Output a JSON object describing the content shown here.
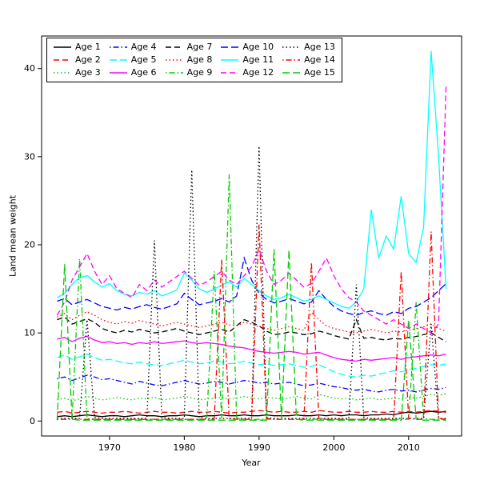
{
  "figure": {
    "background": "#ffffff",
    "box_color": "#000000"
  },
  "chart_data": {
    "type": "line",
    "title": "",
    "xlabel": "Year",
    "ylabel": "Land mean weight",
    "xlim": [
      1963,
      2015
    ],
    "ylim": [
      0,
      42
    ],
    "x_ticks": [
      1970,
      1980,
      1990,
      2000,
      2010
    ],
    "y_ticks": [
      0,
      10,
      20,
      30,
      40
    ],
    "grid": false,
    "legend_position": "top-left",
    "legend_ncol": 5,
    "x": [
      1963,
      1964,
      1965,
      1966,
      1967,
      1968,
      1969,
      1970,
      1971,
      1972,
      1973,
      1974,
      1975,
      1976,
      1977,
      1978,
      1979,
      1980,
      1981,
      1982,
      1983,
      1984,
      1985,
      1986,
      1987,
      1988,
      1989,
      1990,
      1991,
      1992,
      1993,
      1994,
      1995,
      1996,
      1997,
      1998,
      1999,
      2000,
      2001,
      2002,
      2003,
      2004,
      2005,
      2006,
      2007,
      2008,
      2009,
      2010,
      2011,
      2012,
      2013,
      2014,
      2015
    ],
    "series": [
      {
        "name": "Age 1",
        "color": "#000000",
        "linestyle": "solid",
        "values": [
          0.5,
          0.6,
          0.5,
          0.6,
          0.7,
          0.6,
          0.5,
          0.6,
          0.6,
          0.5,
          0.6,
          0.7,
          0.6,
          0.6,
          0.5,
          0.6,
          0.6,
          0.7,
          0.6,
          0.5,
          0.6,
          0.6,
          0.7,
          0.6,
          0.6,
          0.7,
          0.6,
          0.6,
          0.7,
          0.6,
          0.6,
          0.6,
          0.7,
          0.6,
          0.6,
          0.7,
          0.6,
          0.7,
          0.6,
          0.7,
          0.7,
          0.6,
          0.7,
          0.7,
          0.8,
          0.7,
          0.9,
          1.0,
          0.9,
          1.0,
          1.1,
          1.0,
          1.1
        ]
      },
      {
        "name": "Age 2",
        "color": "#ff0000",
        "linestyle": "dashed",
        "values": [
          1.0,
          1.1,
          0.9,
          1.0,
          1.1,
          1.0,
          0.9,
          1.0,
          1.0,
          1.1,
          1.0,
          0.9,
          1.0,
          1.1,
          1.0,
          1.0,
          0.9,
          1.0,
          1.1,
          1.0,
          1.0,
          1.1,
          1.0,
          0.9,
          1.0,
          1.0,
          1.1,
          1.2,
          1.1,
          1.0,
          1.1,
          1.0,
          1.0,
          1.1,
          1.0,
          1.2,
          1.1,
          1.0,
          1.0,
          1.1,
          1.0,
          1.0,
          1.1,
          1.0,
          1.0,
          1.1,
          1.0,
          1.1,
          1.0,
          1.1,
          1.2,
          1.1,
          1.0
        ]
      },
      {
        "name": "Age 3",
        "color": "#00cd00",
        "linestyle": "dotted",
        "values": [
          2.4,
          2.6,
          2.3,
          2.5,
          2.8,
          2.6,
          2.4,
          2.5,
          2.7,
          2.5,
          2.4,
          2.6,
          2.5,
          2.7,
          2.4,
          2.5,
          2.6,
          2.8,
          2.6,
          2.4,
          2.5,
          2.6,
          2.7,
          2.5,
          2.6,
          2.8,
          2.6,
          2.5,
          2.7,
          2.6,
          2.5,
          2.6,
          2.8,
          2.6,
          2.5,
          3.0,
          2.8,
          2.6,
          2.5,
          2.6,
          2.4,
          2.5,
          2.6,
          2.4,
          2.5,
          2.6,
          2.5,
          2.7,
          2.6,
          2.8,
          3.0,
          2.9,
          3.1
        ]
      },
      {
        "name": "Age 4",
        "color": "#0000ff",
        "linestyle": "dashdot",
        "values": [
          4.8,
          5.0,
          4.6,
          4.9,
          5.2,
          5.0,
          4.7,
          4.8,
          4.6,
          4.4,
          4.2,
          4.5,
          4.3,
          4.1,
          4.0,
          4.2,
          4.4,
          4.6,
          4.4,
          4.2,
          4.3,
          4.5,
          4.4,
          4.2,
          4.4,
          4.6,
          4.5,
          4.3,
          4.4,
          4.2,
          4.3,
          4.4,
          4.2,
          4.0,
          4.1,
          4.3,
          4.1,
          3.9,
          3.8,
          3.6,
          3.5,
          3.6,
          3.4,
          3.3,
          3.5,
          3.6,
          3.4,
          3.5,
          3.3,
          3.5,
          3.7,
          3.6,
          3.8
        ]
      },
      {
        "name": "Age 5",
        "color": "#00ffff",
        "linestyle": "longdash",
        "values": [
          7.2,
          7.5,
          7.0,
          7.3,
          7.6,
          7.2,
          6.9,
          7.0,
          6.8,
          6.6,
          6.5,
          6.7,
          6.5,
          6.4,
          6.3,
          6.5,
          6.7,
          6.9,
          6.7,
          6.5,
          6.6,
          6.8,
          6.7,
          6.5,
          6.6,
          6.8,
          6.6,
          6.4,
          6.5,
          6.3,
          6.4,
          6.5,
          6.3,
          6.1,
          6.2,
          6.4,
          6.0,
          5.6,
          5.3,
          5.1,
          5.0,
          5.2,
          5.1,
          5.3,
          5.5,
          5.7,
          5.6,
          5.8,
          6.0,
          6.2,
          6.4,
          6.3,
          6.5
        ]
      },
      {
        "name": "Age 6",
        "color": "#ff00ff",
        "linestyle": "solid",
        "values": [
          9.3,
          9.5,
          9.0,
          9.4,
          9.6,
          9.2,
          8.9,
          9.0,
          8.8,
          8.9,
          8.7,
          8.9,
          8.8,
          9.0,
          8.8,
          8.9,
          9.0,
          9.1,
          8.9,
          8.8,
          8.9,
          8.8,
          8.7,
          8.5,
          8.4,
          8.3,
          8.1,
          7.9,
          7.8,
          7.7,
          7.8,
          7.9,
          7.8,
          7.6,
          7.7,
          7.8,
          7.5,
          7.2,
          7.0,
          6.9,
          6.8,
          7.0,
          6.9,
          7.0,
          7.1,
          7.2,
          7.0,
          7.2,
          7.3,
          7.4,
          7.5,
          7.4,
          7.6
        ]
      },
      {
        "name": "Age 7",
        "color": "#000000",
        "linestyle": "dashed",
        "values": [
          11.5,
          11.8,
          11.0,
          11.3,
          11.6,
          11.2,
          10.5,
          10.2,
          10.0,
          10.3,
          10.1,
          10.4,
          10.2,
          10.0,
          10.1,
          10.3,
          10.5,
          10.2,
          10.0,
          9.8,
          10.0,
          10.2,
          10.4,
          10.1,
          10.8,
          11.5,
          11.2,
          10.8,
          10.2,
          9.8,
          9.9,
          10.1,
          10.0,
          9.8,
          9.9,
          10.2,
          10.0,
          9.7,
          9.5,
          9.3,
          11.5,
          9.4,
          9.5,
          9.3,
          9.2,
          9.4,
          9.3,
          9.5,
          9.6,
          9.8,
          10.0,
          9.5,
          9.0
        ]
      },
      {
        "name": "Age 8",
        "color": "#ff0000",
        "linestyle": "dotted",
        "values": [
          11.8,
          12.2,
          11.5,
          12.0,
          12.4,
          12.0,
          11.5,
          11.2,
          11.0,
          11.3,
          11.1,
          11.4,
          11.2,
          11.0,
          10.8,
          11.0,
          11.2,
          11.0,
          10.8,
          10.6,
          10.8,
          11.0,
          11.2,
          10.9,
          10.8,
          11.2,
          11.0,
          10.7,
          10.5,
          10.3,
          10.5,
          10.7,
          10.5,
          10.3,
          12.3,
          11.5,
          10.8,
          10.5,
          10.3,
          10.1,
          10.0,
          10.2,
          10.4,
          10.2,
          10.0,
          10.2,
          10.1,
          10.3,
          10.5,
          10.7,
          11.0,
          10.5,
          10.2
        ]
      },
      {
        "name": "Age 9",
        "color": "#00cd00",
        "linestyle": "dashdot",
        "values": [
          0.2,
          0.2,
          0.2,
          18.4,
          0.3,
          0.2,
          0.2,
          0.2,
          0.2,
          0.2,
          0.2,
          0.2,
          0.2,
          0.2,
          0.2,
          0.2,
          0.2,
          0.2,
          0.2,
          0.2,
          0.2,
          17.0,
          0.3,
          28.0,
          0.3,
          0.2,
          0.2,
          0.2,
          0.2,
          0.2,
          0.2,
          0.2,
          0.2,
          0.2,
          0.2,
          0.2,
          0.2,
          0.2,
          0.2,
          0.2,
          0.2,
          0.2,
          0.2,
          0.2,
          0.2,
          0.2,
          0.2,
          0.2,
          13.5,
          0.3,
          0.2,
          0.2,
          0.2
        ]
      },
      {
        "name": "Age 10",
        "color": "#0000ff",
        "linestyle": "longdash",
        "values": [
          13.6,
          13.9,
          13.2,
          13.5,
          13.8,
          13.4,
          13.0,
          12.8,
          12.6,
          12.9,
          12.7,
          13.0,
          13.2,
          12.9,
          12.7,
          13.0,
          13.3,
          14.5,
          13.8,
          13.2,
          13.4,
          13.6,
          13.9,
          13.5,
          14.2,
          18.5,
          16.0,
          14.5,
          13.8,
          13.4,
          13.6,
          13.9,
          13.6,
          13.3,
          13.5,
          14.8,
          13.8,
          13.0,
          12.5,
          12.2,
          12.0,
          12.3,
          12.5,
          12.2,
          12.0,
          12.4,
          12.2,
          12.8,
          13.0,
          13.5,
          14.0,
          14.8,
          15.6
        ]
      },
      {
        "name": "Age 11",
        "color": "#00ffff",
        "linestyle": "solid",
        "values": [
          14.0,
          14.5,
          15.5,
          16.3,
          16.5,
          15.8,
          15.2,
          15.6,
          14.8,
          14.4,
          14.2,
          14.6,
          14.4,
          14.8,
          14.2,
          14.5,
          14.9,
          16.8,
          16.0,
          15.0,
          14.6,
          15.0,
          15.4,
          15.8,
          15.2,
          16.2,
          15.5,
          14.8,
          14.2,
          13.8,
          14.0,
          14.4,
          14.0,
          13.6,
          13.8,
          14.2,
          13.8,
          13.4,
          13.0,
          12.8,
          13.5,
          15.0,
          24.0,
          18.5,
          21.0,
          19.5,
          25.5,
          19.0,
          18.0,
          22.0,
          42.0,
          30.0,
          15.0
        ]
      },
      {
        "name": "Age 12",
        "color": "#ff00ff",
        "linestyle": "dashed",
        "values": [
          12.0,
          13.5,
          16.0,
          17.5,
          19.0,
          17.0,
          15.5,
          16.5,
          15.0,
          14.5,
          14.0,
          15.5,
          14.8,
          16.0,
          15.2,
          15.8,
          16.4,
          17.0,
          16.2,
          15.4,
          15.8,
          16.4,
          17.0,
          16.0,
          15.5,
          16.5,
          17.5,
          19.5,
          17.0,
          15.5,
          16.0,
          16.8,
          16.0,
          15.2,
          15.6,
          17.0,
          18.5,
          16.5,
          15.0,
          14.0,
          13.5,
          12.5,
          12.0,
          11.5,
          11.0,
          11.5,
          11.0,
          10.5,
          11.0,
          10.5,
          10.0,
          11.0,
          38.0
        ]
      },
      {
        "name": "Age 13",
        "color": "#000000",
        "linestyle": "dotted",
        "values": [
          0.3,
          0.3,
          0.3,
          0.3,
          11.5,
          0.4,
          0.3,
          0.3,
          0.3,
          0.3,
          0.3,
          0.3,
          0.3,
          20.5,
          0.4,
          0.3,
          0.3,
          0.3,
          28.5,
          0.4,
          0.3,
          0.3,
          0.3,
          0.3,
          0.3,
          0.3,
          0.3,
          31.2,
          0.4,
          0.3,
          0.3,
          0.3,
          0.3,
          0.3,
          0.3,
          0.3,
          0.3,
          0.3,
          0.3,
          0.3,
          15.5,
          0.4,
          0.3,
          0.3,
          0.3,
          0.3,
          0.3,
          0.3,
          0.3,
          0.3,
          11.0,
          0.3,
          0.3
        ]
      },
      {
        "name": "Age 14",
        "color": "#ff0000",
        "linestyle": "dashdot",
        "values": [
          0.2,
          0.2,
          0.2,
          0.2,
          0.2,
          0.2,
          0.2,
          0.2,
          0.2,
          0.2,
          0.2,
          0.2,
          0.2,
          0.2,
          0.2,
          0.2,
          0.2,
          0.2,
          0.2,
          0.2,
          0.2,
          0.2,
          18.3,
          0.3,
          0.2,
          0.2,
          0.2,
          22.3,
          0.3,
          0.2,
          0.2,
          0.2,
          0.2,
          0.2,
          18.0,
          0.3,
          0.2,
          0.2,
          0.2,
          0.2,
          0.2,
          0.2,
          0.2,
          0.2,
          0.2,
          0.2,
          17.0,
          0.3,
          0.2,
          0.2,
          21.5,
          0.3,
          0.2
        ]
      },
      {
        "name": "Age 15",
        "color": "#00cd00",
        "linestyle": "longdash",
        "values": [
          0.1,
          17.8,
          0.2,
          0.1,
          0.1,
          0.1,
          0.1,
          0.1,
          0.1,
          0.1,
          0.1,
          0.1,
          0.1,
          0.1,
          0.1,
          0.1,
          0.1,
          0.1,
          0.1,
          0.1,
          0.1,
          0.1,
          0.1,
          0.1,
          0.1,
          0.1,
          0.1,
          0.1,
          0.1,
          19.5,
          0.2,
          19.4,
          0.2,
          0.1,
          0.1,
          0.1,
          0.1,
          0.1,
          0.1,
          0.1,
          0.1,
          0.1,
          0.1,
          0.1,
          0.1,
          0.1,
          0.1,
          11.5,
          0.2,
          0.1,
          0.1,
          0.1,
          0.1
        ]
      }
    ]
  }
}
